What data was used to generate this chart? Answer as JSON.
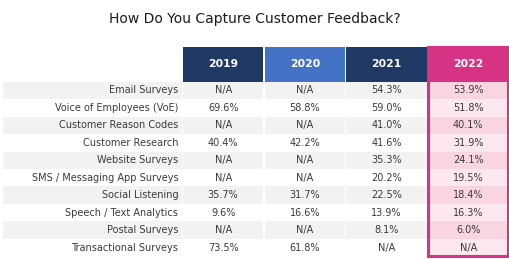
{
  "title": "How Do You Capture Customer Feedback?",
  "columns": [
    "2019",
    "2020",
    "2021",
    "2022"
  ],
  "rows": [
    [
      "Email Surveys",
      "N/A",
      "N/A",
      "54.3%",
      "53.9%"
    ],
    [
      "Voice of Employees (VoE)",
      "69.6%",
      "58.8%",
      "59.0%",
      "51.8%"
    ],
    [
      "Customer Reason Codes",
      "N/A",
      "N/A",
      "41.0%",
      "40.1%"
    ],
    [
      "Customer Research",
      "40.4%",
      "42.2%",
      "41.6%",
      "31.9%"
    ],
    [
      "Website Surveys",
      "N/A",
      "N/A",
      "35.3%",
      "24.1%"
    ],
    [
      "SMS / Messaging App Surveys",
      "N/A",
      "N/A",
      "20.2%",
      "19.5%"
    ],
    [
      "Social Listening",
      "35.7%",
      "31.7%",
      "22.5%",
      "18.4%"
    ],
    [
      "Speech / Text Analytics",
      "9.6%",
      "16.6%",
      "13.9%",
      "16.3%"
    ],
    [
      "Postal Surveys",
      "N/A",
      "N/A",
      "8.1%",
      "6.0%"
    ],
    [
      "Transactional Surveys",
      "73.5%",
      "61.8%",
      "N/A",
      "N/A"
    ]
  ],
  "header_colors": [
    "#1f3864",
    "#4472c4",
    "#1f3864",
    "#d63384"
  ],
  "header_text_color": "#ffffff",
  "row_odd_bg": "#f2f2f2",
  "row_even_bg": "#ffffff",
  "col2022_odd_bg": "#f9d5e2",
  "col2022_even_bg": "#fde8ef",
  "row_label_color": "#3a3a3a",
  "cell_text_color": "#3a3a3a",
  "border_2022_color": "#d63384",
  "title_fontsize": 10,
  "header_fontsize": 7.8,
  "cell_fontsize": 7.0,
  "label_fontsize": 7.0
}
